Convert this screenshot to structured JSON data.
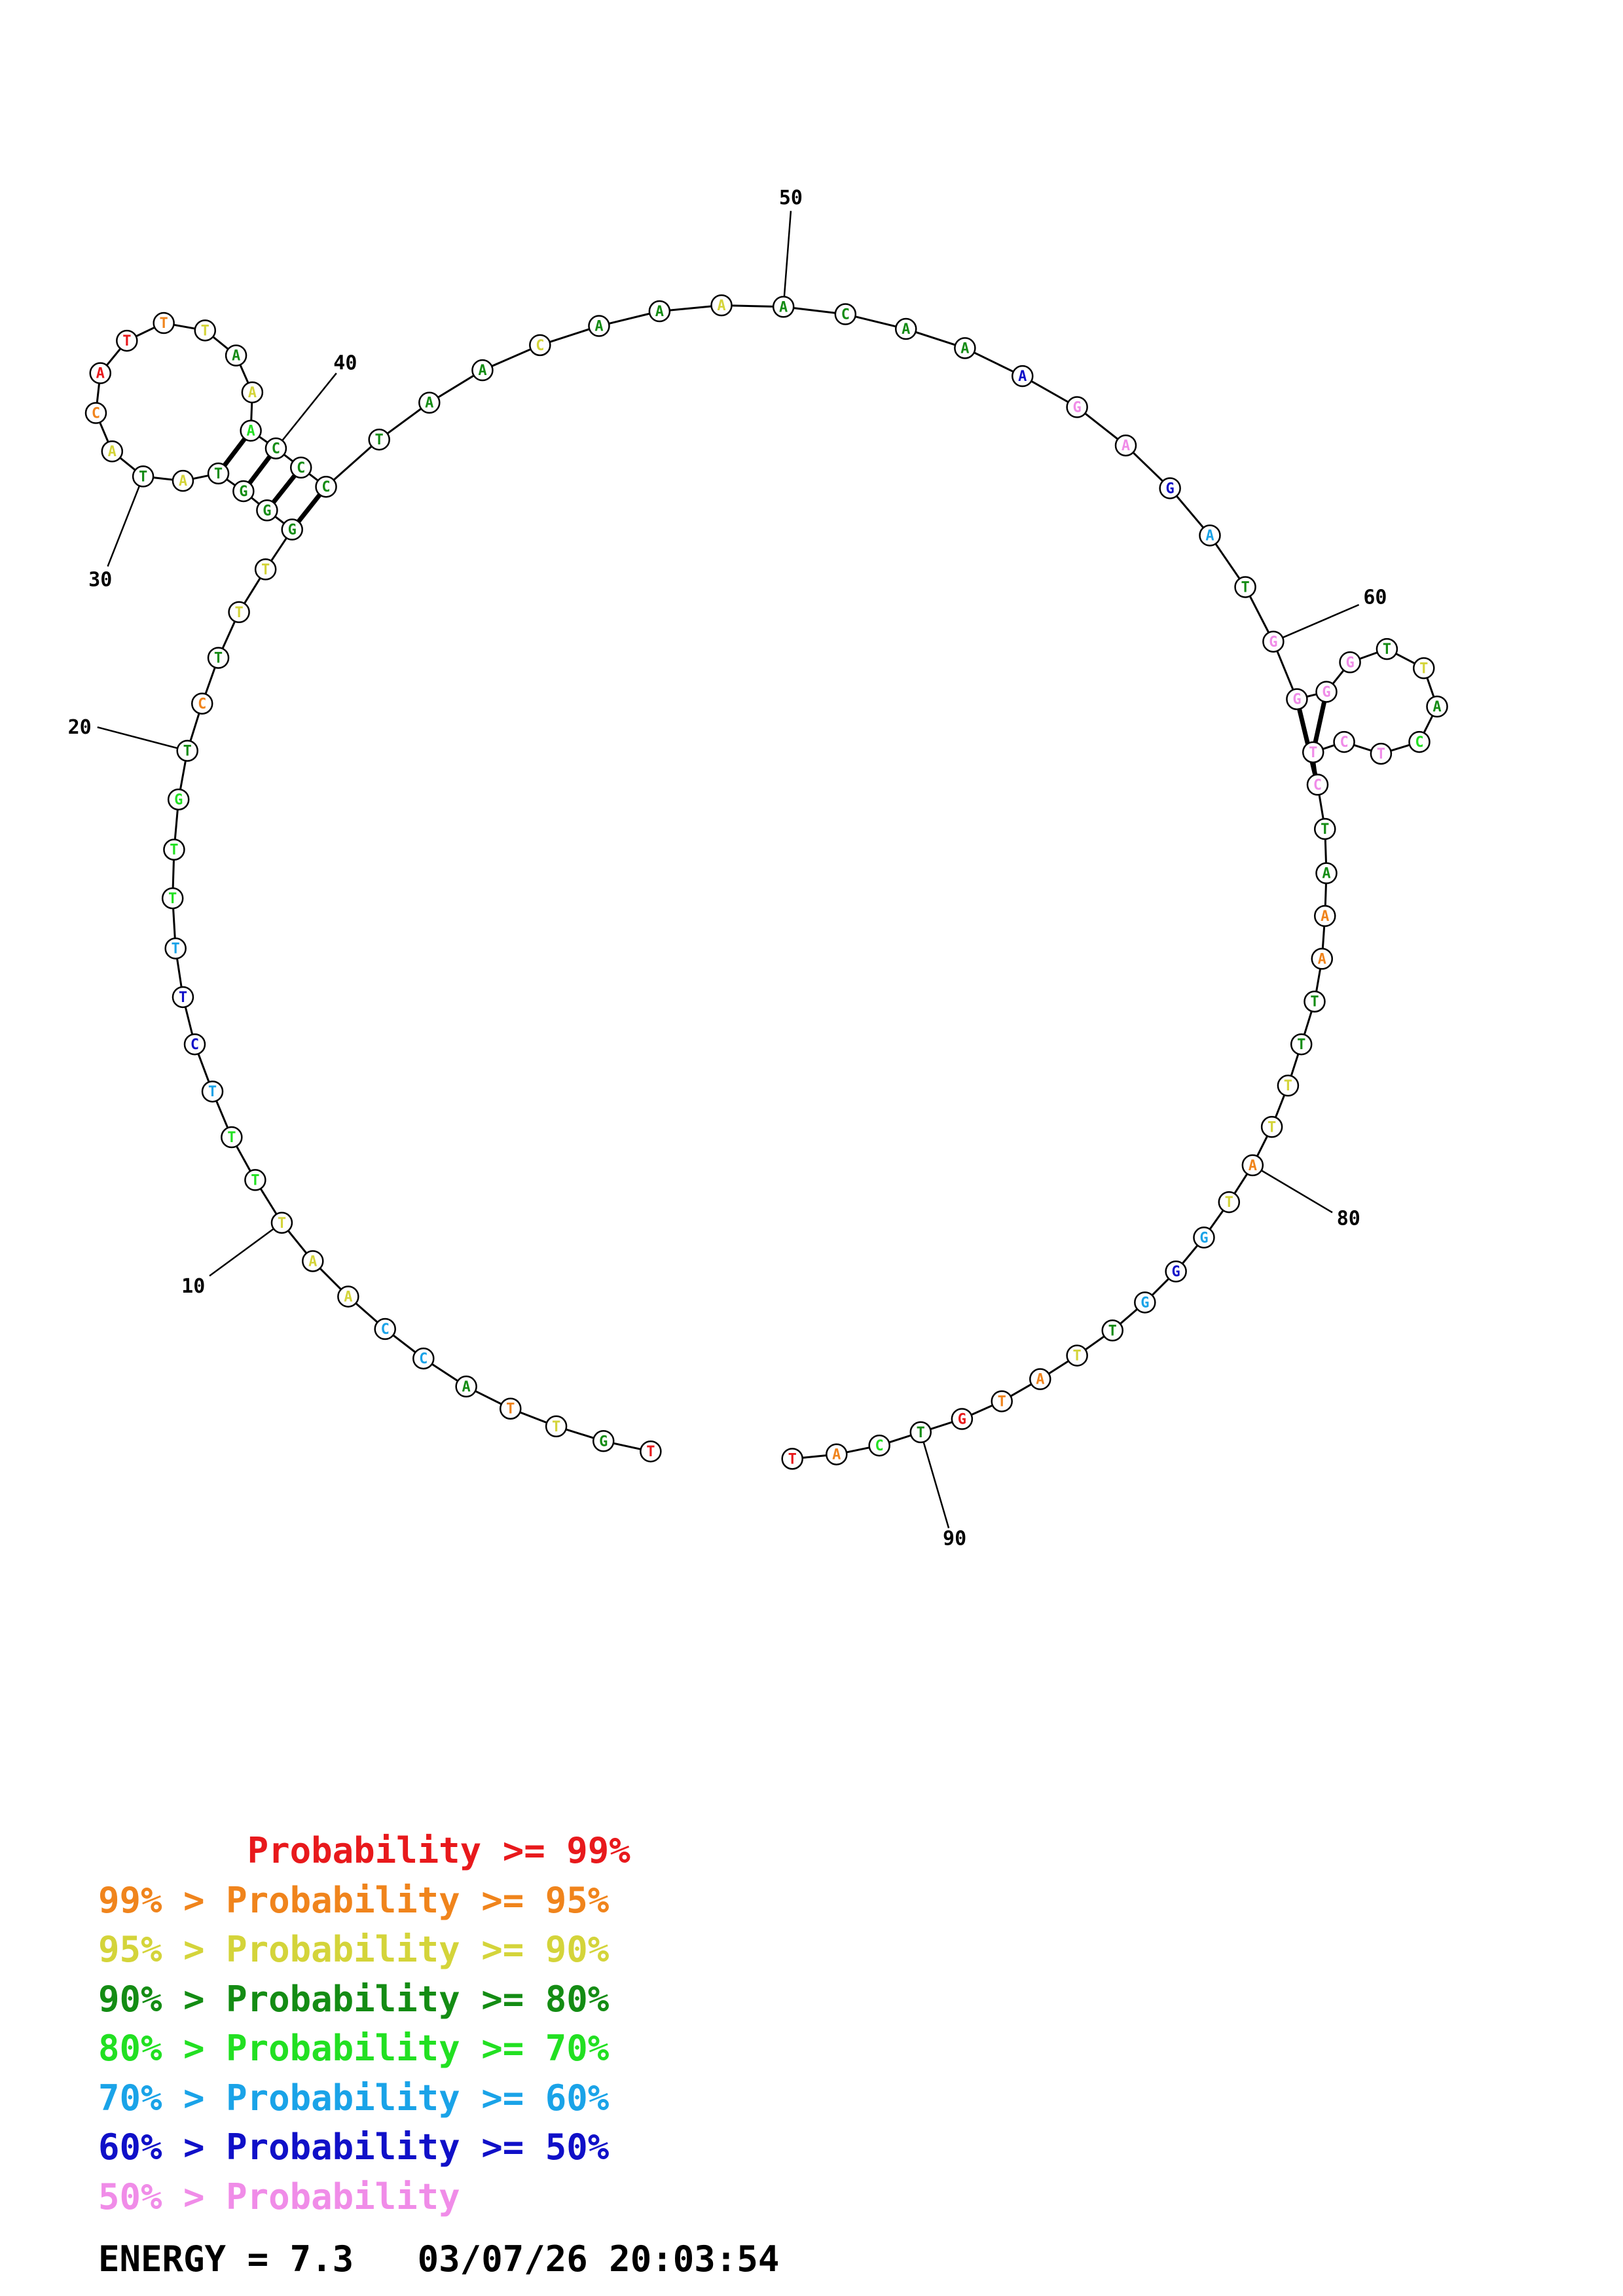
{
  "structure": {
    "nucleotides": [
      {
        "n": 1,
        "base": "T",
        "color": "#e8191c"
      },
      {
        "n": 2,
        "base": "G",
        "color": "#148c14"
      },
      {
        "n": 3,
        "base": "T",
        "color": "#d4d43a"
      },
      {
        "n": 4,
        "base": "T",
        "color": "#f0841c"
      },
      {
        "n": 5,
        "base": "A",
        "color": "#148c14"
      },
      {
        "n": 6,
        "base": "C",
        "color": "#1aa3e8"
      },
      {
        "n": 7,
        "base": "C",
        "color": "#1aa3e8"
      },
      {
        "n": 8,
        "base": "A",
        "color": "#d4d43a"
      },
      {
        "n": 9,
        "base": "A",
        "color": "#d4d43a"
      },
      {
        "n": 10,
        "base": "T",
        "color": "#d4d43a"
      },
      {
        "n": 11,
        "base": "T",
        "color": "#22e022"
      },
      {
        "n": 12,
        "base": "T",
        "color": "#22e022"
      },
      {
        "n": 13,
        "base": "T",
        "color": "#1aa3e8"
      },
      {
        "n": 14,
        "base": "C",
        "color": "#1010c8"
      },
      {
        "n": 15,
        "base": "T",
        "color": "#1010c8"
      },
      {
        "n": 16,
        "base": "T",
        "color": "#1aa3e8"
      },
      {
        "n": 17,
        "base": "T",
        "color": "#22e022"
      },
      {
        "n": 18,
        "base": "T",
        "color": "#22e022"
      },
      {
        "n": 19,
        "base": "G",
        "color": "#22e022"
      },
      {
        "n": 20,
        "base": "T",
        "color": "#148c14"
      },
      {
        "n": 21,
        "base": "C",
        "color": "#f0841c"
      },
      {
        "n": 22,
        "base": "T",
        "color": "#148c14"
      },
      {
        "n": 23,
        "base": "T",
        "color": "#d4d43a"
      },
      {
        "n": 24,
        "base": "T",
        "color": "#d4d43a"
      },
      {
        "n": 25,
        "base": "G",
        "color": "#148c14"
      },
      {
        "n": 26,
        "base": "G",
        "color": "#148c14"
      },
      {
        "n": 27,
        "base": "G",
        "color": "#148c14"
      },
      {
        "n": 28,
        "base": "T",
        "color": "#148c14"
      },
      {
        "n": 29,
        "base": "A",
        "color": "#d4d43a"
      },
      {
        "n": 30,
        "base": "T",
        "color": "#148c14"
      },
      {
        "n": 31,
        "base": "A",
        "color": "#d4d43a"
      },
      {
        "n": 32,
        "base": "C",
        "color": "#f0841c"
      },
      {
        "n": 33,
        "base": "A",
        "color": "#e8191c"
      },
      {
        "n": 34,
        "base": "T",
        "color": "#e8191c"
      },
      {
        "n": 35,
        "base": "T",
        "color": "#f0841c"
      },
      {
        "n": 36,
        "base": "T",
        "color": "#d4d43a"
      },
      {
        "n": 37,
        "base": "A",
        "color": "#148c14"
      },
      {
        "n": 38,
        "base": "A",
        "color": "#d4d43a"
      },
      {
        "n": 39,
        "base": "A",
        "color": "#22e022"
      },
      {
        "n": 40,
        "base": "C",
        "color": "#148c14"
      },
      {
        "n": 41,
        "base": "C",
        "color": "#148c14"
      },
      {
        "n": 42,
        "base": "C",
        "color": "#148c14"
      },
      {
        "n": 43,
        "base": "T",
        "color": "#148c14"
      },
      {
        "n": 44,
        "base": "A",
        "color": "#148c14"
      },
      {
        "n": 45,
        "base": "A",
        "color": "#148c14"
      },
      {
        "n": 46,
        "base": "C",
        "color": "#d4d43a"
      },
      {
        "n": 47,
        "base": "A",
        "color": "#148c14"
      },
      {
        "n": 48,
        "base": "A",
        "color": "#148c14"
      },
      {
        "n": 49,
        "base": "A",
        "color": "#d4d43a"
      },
      {
        "n": 50,
        "base": "A",
        "color": "#148c14"
      },
      {
        "n": 51,
        "base": "C",
        "color": "#148c14"
      },
      {
        "n": 52,
        "base": "A",
        "color": "#148c14"
      },
      {
        "n": 53,
        "base": "A",
        "color": "#148c14"
      },
      {
        "n": 54,
        "base": "A",
        "color": "#1010c8"
      },
      {
        "n": 55,
        "base": "G",
        "color": "#f08ce8"
      },
      {
        "n": 56,
        "base": "A",
        "color": "#f08ce8"
      },
      {
        "n": 57,
        "base": "G",
        "color": "#1010c8"
      },
      {
        "n": 58,
        "base": "A",
        "color": "#1aa3e8"
      },
      {
        "n": 59,
        "base": "T",
        "color": "#148c14"
      },
      {
        "n": 60,
        "base": "G",
        "color": "#f08ce8"
      },
      {
        "n": 61,
        "base": "G",
        "color": "#f08ce8"
      },
      {
        "n": 62,
        "base": "G",
        "color": "#f08ce8"
      },
      {
        "n": 63,
        "base": "G",
        "color": "#f08ce8"
      },
      {
        "n": 64,
        "base": "T",
        "color": "#148c14"
      },
      {
        "n": 65,
        "base": "T",
        "color": "#d4d43a"
      },
      {
        "n": 66,
        "base": "A",
        "color": "#148c14"
      },
      {
        "n": 67,
        "base": "C",
        "color": "#22e022"
      },
      {
        "n": 68,
        "base": "T",
        "color": "#f08ce8"
      },
      {
        "n": 69,
        "base": "C",
        "color": "#f08ce8"
      },
      {
        "n": 70,
        "base": "T",
        "color": "#f08ce8"
      },
      {
        "n": 71,
        "base": "C",
        "color": "#f08ce8"
      },
      {
        "n": 72,
        "base": "T",
        "color": "#148c14"
      },
      {
        "n": 73,
        "base": "A",
        "color": "#148c14"
      },
      {
        "n": 74,
        "base": "A",
        "color": "#f0841c"
      },
      {
        "n": 75,
        "base": "A",
        "color": "#f0841c"
      },
      {
        "n": 76,
        "base": "T",
        "color": "#148c14"
      },
      {
        "n": 77,
        "base": "T",
        "color": "#148c14"
      },
      {
        "n": 78,
        "base": "T",
        "color": "#d4d43a"
      },
      {
        "n": 79,
        "base": "T",
        "color": "#d4d43a"
      },
      {
        "n": 80,
        "base": "A",
        "color": "#f0841c"
      },
      {
        "n": 81,
        "base": "T",
        "color": "#d4d43a"
      },
      {
        "n": 82,
        "base": "G",
        "color": "#1aa3e8"
      },
      {
        "n": 83,
        "base": "G",
        "color": "#1010c8"
      },
      {
        "n": 84,
        "base": "G",
        "color": "#1aa3e8"
      },
      {
        "n": 85,
        "base": "T",
        "color": "#148c14"
      },
      {
        "n": 86,
        "base": "T",
        "color": "#d4d43a"
      },
      {
        "n": 87,
        "base": "A",
        "color": "#f0841c"
      },
      {
        "n": 88,
        "base": "T",
        "color": "#f0841c"
      },
      {
        "n": 89,
        "base": "G",
        "color": "#e8191c"
      },
      {
        "n": 90,
        "base": "T",
        "color": "#148c14"
      },
      {
        "n": 91,
        "base": "C",
        "color": "#22e022"
      },
      {
        "n": 92,
        "base": "A",
        "color": "#f0841c"
      },
      {
        "n": 93,
        "base": "T",
        "color": "#e8191c"
      }
    ],
    "base_pairs": [
      [
        25,
        42
      ],
      [
        26,
        41
      ],
      [
        27,
        40
      ],
      [
        28,
        39
      ],
      [
        61,
        71
      ],
      [
        62,
        70
      ]
    ],
    "position_labels": [
      "10",
      "20",
      "30",
      "40",
      "50",
      "60",
      "80",
      "90"
    ]
  },
  "legend": {
    "lines": [
      {
        "text": "       Probability >= 99%",
        "color": "#e8191c"
      },
      {
        "text": "99% > Probability >= 95%",
        "color": "#f0841c"
      },
      {
        "text": "95% > Probability >= 90%",
        "color": "#d4d43a"
      },
      {
        "text": "90% > Probability >= 80%",
        "color": "#148c14"
      },
      {
        "text": "80% > Probability >= 70%",
        "color": "#22e022"
      },
      {
        "text": "70% > Probability >= 60%",
        "color": "#1aa3e8"
      },
      {
        "text": "60% > Probability >= 50%",
        "color": "#1010c8"
      },
      {
        "text": "50% > Probability",
        "color": "#f08ce8"
      }
    ]
  },
  "footer": {
    "energy_text": "ENERGY = 7.3   03/07/26 20:03:54"
  }
}
